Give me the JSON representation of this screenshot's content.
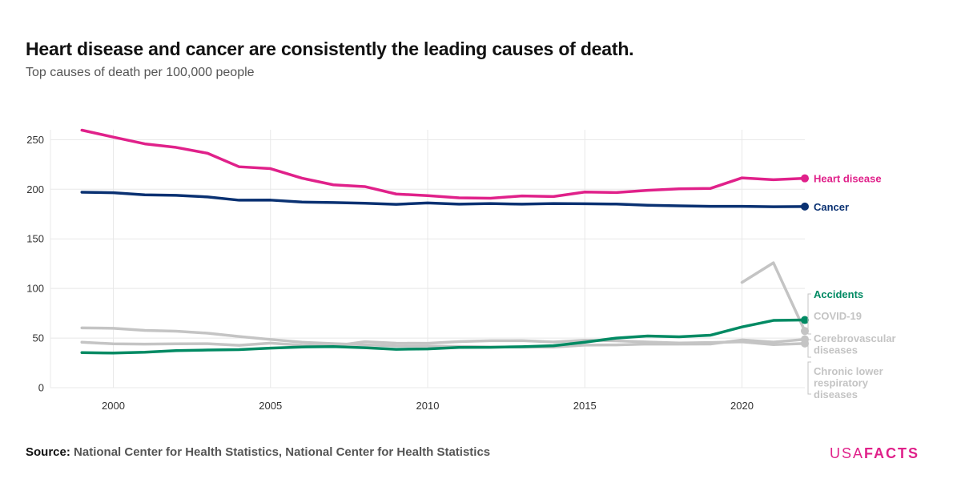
{
  "header": {
    "title": "Heart disease and cancer are consistently the leading causes of death.",
    "subtitle": "Top causes of death per 100,000 people"
  },
  "footer": {
    "source_label": "Source:",
    "source_text": "National Center for Health Statistics, National Center for Health Statistics",
    "logo_left": "USA",
    "logo_right": "FACTS"
  },
  "colors": {
    "heart": "#e0218a",
    "cancer": "#0a3172",
    "accidents": "#008a63",
    "grey": "#c4c4c4",
    "grid": "#e8e8e8"
  },
  "chart_data": {
    "type": "line",
    "title": "Heart disease and cancer are consistently the leading causes of death.",
    "subtitle": "Top causes of death per 100,000 people",
    "xlabel": "",
    "ylabel": "",
    "xlim": [
      1998,
      2022
    ],
    "ylim": [
      0,
      260
    ],
    "yticks": [
      0,
      50,
      100,
      150,
      200,
      250
    ],
    "xticks": [
      2000,
      2005,
      2010,
      2015,
      2020
    ],
    "grid": true,
    "x": [
      1999,
      2000,
      2001,
      2002,
      2003,
      2004,
      2005,
      2006,
      2007,
      2008,
      2009,
      2010,
      2011,
      2012,
      2013,
      2014,
      2015,
      2016,
      2017,
      2018,
      2019,
      2020,
      2021,
      2022
    ],
    "series": [
      {
        "key": "heart",
        "name": "Heart disease",
        "color": "#e0218a",
        "highlight": true,
        "values": [
          259.6,
          252.6,
          245.8,
          242.2,
          236.3,
          222.7,
          220.8,
          211.2,
          204.5,
          202.7,
          195.2,
          193.6,
          191.4,
          191.0,
          193.3,
          192.7,
          197.2,
          196.7,
          198.9,
          200.4,
          200.9,
          211.5,
          209.6,
          211.0
        ]
      },
      {
        "key": "cancer",
        "name": "Cancer",
        "color": "#0a3172",
        "highlight": true,
        "values": [
          197.0,
          196.5,
          194.4,
          193.9,
          192.3,
          189.0,
          189.1,
          187.1,
          186.6,
          185.9,
          184.8,
          186.2,
          185.0,
          185.6,
          185.0,
          185.6,
          185.4,
          185.1,
          183.9,
          183.3,
          182.8,
          182.8,
          182.4,
          182.6
        ]
      },
      {
        "key": "accidents",
        "name": "Accidents",
        "color": "#008a63",
        "highlight": true,
        "values": [
          35.3,
          34.9,
          35.7,
          37.3,
          37.9,
          38.4,
          39.9,
          41.0,
          41.4,
          40.3,
          38.7,
          39.1,
          40.6,
          40.7,
          41.3,
          42.3,
          45.8,
          50.0,
          52.1,
          51.3,
          52.9,
          61.2,
          67.8,
          68.2
        ]
      },
      {
        "key": "covid",
        "name": "COVID-19",
        "color": "#c4c4c4",
        "highlight": false,
        "values": [
          null,
          null,
          null,
          null,
          null,
          null,
          null,
          null,
          null,
          null,
          null,
          null,
          null,
          null,
          null,
          null,
          null,
          null,
          null,
          null,
          null,
          106.1,
          125.9,
          57.1
        ]
      },
      {
        "key": "stroke",
        "name": "Cerebrovascular diseases",
        "color": "#c4c4c4",
        "highlight": false,
        "values": [
          60.3,
          59.9,
          57.7,
          56.9,
          54.9,
          51.6,
          48.6,
          45.8,
          44.4,
          43.2,
          42.1,
          41.9,
          41.6,
          41.0,
          40.9,
          40.9,
          42.9,
          43.1,
          44.0,
          43.9,
          44.0,
          48.1,
          45.9,
          48.7
        ]
      },
      {
        "key": "clrd",
        "name": "Chronic lower respiratory diseases",
        "color": "#c4c4c4",
        "highlight": false,
        "values": [
          45.8,
          44.2,
          43.9,
          44.2,
          44.3,
          42.7,
          44.9,
          42.8,
          42.0,
          46.3,
          44.8,
          44.7,
          46.4,
          47.3,
          47.4,
          46.0,
          47.8,
          47.2,
          46.0,
          45.0,
          45.5,
          46.2,
          43.4,
          44.5
        ]
      }
    ]
  }
}
